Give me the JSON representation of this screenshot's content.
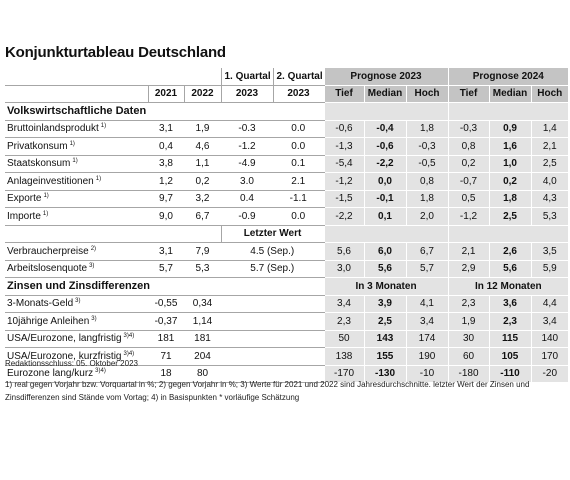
{
  "title": "Konjunkturtableau Deutschland",
  "table": {
    "header_top": {
      "q1": "1. Quartal",
      "q2": "2. Quartal",
      "prog1": "Prognose 2023",
      "prog2": "Prognose 2024"
    },
    "header": [
      "2021",
      "2022",
      "2023",
      "2023",
      "Tief",
      "Median",
      "Hoch",
      "Tief",
      "Median",
      "Hoch"
    ],
    "sections": [
      {
        "title": "Volkswirtschaftliche Daten",
        "rows": [
          {
            "label": "Bruttoinlandsprodukt",
            "note": "1)",
            "cells": [
              "3,1",
              "1,9",
              "-0.3",
              "0.0",
              "-0,6",
              "-0,4",
              "1,8",
              "-0,3",
              "0,9",
              "1,4"
            ]
          },
          {
            "label": "Privatkonsum",
            "note": "1)",
            "cells": [
              "0,4",
              "4,6",
              "-1.2",
              "0.0",
              "-1,3",
              "-0,6",
              "-0,3",
              "0,8",
              "1,6",
              "2,1"
            ]
          },
          {
            "label": "Staatskonsum",
            "note": "1)",
            "cells": [
              "3,8",
              "1,1",
              "-4.9",
              "0.1",
              "-5,4",
              "-2,2",
              "-0,5",
              "0,2",
              "1,0",
              "2,5"
            ]
          },
          {
            "label": "Anlageinvestitionen",
            "note": "1)",
            "cells": [
              "1,2",
              "0,2",
              "3.0",
              "2.1",
              "-1,2",
              "0,0",
              "0,8",
              "-0,7",
              "0,2",
              "4,0"
            ]
          },
          {
            "label": "Exporte",
            "note": "1)",
            "cells": [
              "9,7",
              "3,2",
              "0.4",
              "-1.1",
              "-1,5",
              "-0,1",
              "1,8",
              "0,5",
              "1,8",
              "4,3"
            ]
          },
          {
            "label": "Importe",
            "note": "1)",
            "cells": [
              "9,0",
              "6,7",
              "-0.9",
              "0.0",
              "-2,2",
              "0,1",
              "2,0",
              "-1,2",
              "2,5",
              "5,3"
            ]
          }
        ]
      },
      {
        "subheader": "Letzter Wert",
        "rows": [
          {
            "label": "Verbraucherpreise",
            "note": "2)",
            "cells": [
              "3,1",
              "7,9",
              "4.5 (Sep.)",
              "5,6",
              "6,0",
              "6,7",
              "2,1",
              "2,6",
              "3,5"
            ]
          },
          {
            "label": "Arbeitslosenquote",
            "note": "3)",
            "cells": [
              "5,7",
              "5,3",
              "5.7 (Sep.)",
              "3,0",
              "5,6",
              "5,7",
              "2,9",
              "5,6",
              "5,9"
            ]
          }
        ]
      },
      {
        "title": "Zinsen und Zinsdifferenzen",
        "forecast_labels": [
          "In 3 Monaten",
          "In 12 Monaten"
        ],
        "rows": [
          {
            "label": "3-Monats-Geld",
            "note": "3)",
            "cells": [
              "-0,55",
              "0,34",
              "3,4",
              "3,9",
              "4,1",
              "2,3",
              "3,6",
              "4,4"
            ]
          },
          {
            "label": "10jährige Anleihen",
            "note": "3)",
            "cells": [
              "-0,37",
              "1,14",
              "2,3",
              "2,5",
              "3,4",
              "1,9",
              "2,3",
              "3,4"
            ]
          },
          {
            "label": "USA/Eurozone, langfristig",
            "note": "3)4)",
            "cells": [
              "181",
              "181",
              "50",
              "143",
              "174",
              "30",
              "115",
              "140"
            ]
          },
          {
            "label": "USA/Eurozone, kurzfristig",
            "note": "3)4)",
            "cells": [
              "71",
              "204",
              "138",
              "155",
              "190",
              "60",
              "105",
              "170"
            ]
          },
          {
            "label": "Eurozone lang/kurz",
            "note": "3)4)",
            "cells": [
              "18",
              "80",
              "-170",
              "-130",
              "-10",
              "-180",
              "-110",
              "-20"
            ]
          }
        ]
      }
    ]
  },
  "footer": {
    "deadline": "Redaktionsschluss: 05. Oktober 2023",
    "notes": "1) real gegen Vorjahr bzw. Vorquartal in %; 2) gegen Vorjahr in %; 3) Werte für 2021 und 2022 sind Jahresdurchschnitte. letzter Wert der Zinsen und Zinsdifferenzen sind Stände vom Vortag; 4) in Basispunkten * vorläufige Schätzung"
  }
}
